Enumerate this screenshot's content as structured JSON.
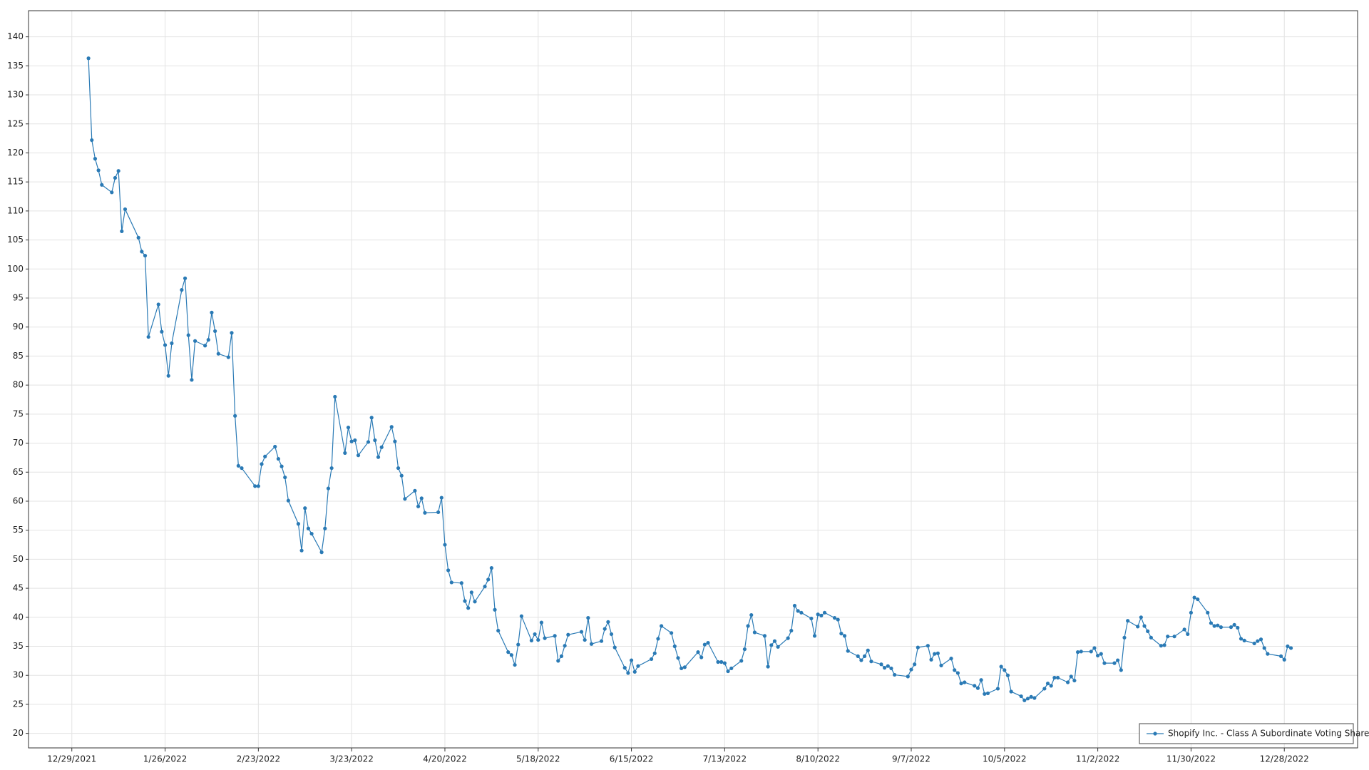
{
  "chart_data": {
    "type": "line",
    "x": [
      "1/3/2022",
      "1/4/2022",
      "1/5/2022",
      "1/6/2022",
      "1/7/2022",
      "1/10/2022",
      "1/11/2022",
      "1/12/2022",
      "1/13/2022",
      "1/14/2022",
      "1/18/2022",
      "1/19/2022",
      "1/20/2022",
      "1/21/2022",
      "1/24/2022",
      "1/25/2022",
      "1/26/2022",
      "1/27/2022",
      "1/28/2022",
      "1/31/2022",
      "2/1/2022",
      "2/2/2022",
      "2/3/2022",
      "2/4/2022",
      "2/7/2022",
      "2/8/2022",
      "2/9/2022",
      "2/10/2022",
      "2/11/2022",
      "2/14/2022",
      "2/15/2022",
      "2/16/2022",
      "2/17/2022",
      "2/18/2022",
      "2/22/2022",
      "2/23/2022",
      "2/24/2022",
      "2/25/2022",
      "2/28/2022",
      "3/1/2022",
      "3/2/2022",
      "3/3/2022",
      "3/4/2022",
      "3/7/2022",
      "3/8/2022",
      "3/9/2022",
      "3/10/2022",
      "3/11/2022",
      "3/14/2022",
      "3/15/2022",
      "3/16/2022",
      "3/17/2022",
      "3/18/2022",
      "3/21/2022",
      "3/22/2022",
      "3/23/2022",
      "3/24/2022",
      "3/25/2022",
      "3/28/2022",
      "3/29/2022",
      "3/30/2022",
      "3/31/2022",
      "4/1/2022",
      "4/4/2022",
      "4/5/2022",
      "4/6/2022",
      "4/7/2022",
      "4/8/2022",
      "4/11/2022",
      "4/12/2022",
      "4/13/2022",
      "4/14/2022",
      "4/18/2022",
      "4/19/2022",
      "4/20/2022",
      "4/21/2022",
      "4/22/2022",
      "4/25/2022",
      "4/26/2022",
      "4/27/2022",
      "4/28/2022",
      "4/29/2022",
      "5/2/2022",
      "5/3/2022",
      "5/4/2022",
      "5/5/2022",
      "5/6/2022",
      "5/9/2022",
      "5/10/2022",
      "5/11/2022",
      "5/12/2022",
      "5/13/2022",
      "5/16/2022",
      "5/17/2022",
      "5/18/2022",
      "5/19/2022",
      "5/20/2022",
      "5/23/2022",
      "5/24/2022",
      "5/25/2022",
      "5/26/2022",
      "5/27/2022",
      "5/31/2022",
      "6/1/2022",
      "6/2/2022",
      "6/3/2022",
      "6/6/2022",
      "6/7/2022",
      "6/8/2022",
      "6/9/2022",
      "6/10/2022",
      "6/13/2022",
      "6/14/2022",
      "6/15/2022",
      "6/16/2022",
      "6/17/2022",
      "6/21/2022",
      "6/22/2022",
      "6/23/2022",
      "6/24/2022",
      "6/27/2022",
      "6/28/2022",
      "6/29/2022",
      "6/30/2022",
      "7/1/2022",
      "7/5/2022",
      "7/6/2022",
      "7/7/2022",
      "7/8/2022",
      "7/11/2022",
      "7/12/2022",
      "7/13/2022",
      "7/14/2022",
      "7/15/2022",
      "7/18/2022",
      "7/19/2022",
      "7/20/2022",
      "7/21/2022",
      "7/22/2022",
      "7/25/2022",
      "7/26/2022",
      "7/27/2022",
      "7/28/2022",
      "7/29/2022",
      "8/1/2022",
      "8/2/2022",
      "8/3/2022",
      "8/4/2022",
      "8/5/2022",
      "8/8/2022",
      "8/9/2022",
      "8/10/2022",
      "8/11/2022",
      "8/12/2022",
      "8/15/2022",
      "8/16/2022",
      "8/17/2022",
      "8/18/2022",
      "8/19/2022",
      "8/22/2022",
      "8/23/2022",
      "8/24/2022",
      "8/25/2022",
      "8/26/2022",
      "8/29/2022",
      "8/30/2022",
      "8/31/2022",
      "9/1/2022",
      "9/2/2022",
      "9/6/2022",
      "9/7/2022",
      "9/8/2022",
      "9/9/2022",
      "9/12/2022",
      "9/13/2022",
      "9/14/2022",
      "9/15/2022",
      "9/16/2022",
      "9/19/2022",
      "9/20/2022",
      "9/21/2022",
      "9/22/2022",
      "9/23/2022",
      "9/26/2022",
      "9/27/2022",
      "9/28/2022",
      "9/29/2022",
      "9/30/2022",
      "10/3/2022",
      "10/4/2022",
      "10/5/2022",
      "10/6/2022",
      "10/7/2022",
      "10/10/2022",
      "10/11/2022",
      "10/12/2022",
      "10/13/2022",
      "10/14/2022",
      "10/17/2022",
      "10/18/2022",
      "10/19/2022",
      "10/20/2022",
      "10/21/2022",
      "10/24/2022",
      "10/25/2022",
      "10/26/2022",
      "10/27/2022",
      "10/28/2022",
      "10/31/2022",
      "11/1/2022",
      "11/2/2022",
      "11/3/2022",
      "11/4/2022",
      "11/7/2022",
      "11/8/2022",
      "11/9/2022",
      "11/10/2022",
      "11/11/2022",
      "11/14/2022",
      "11/15/2022",
      "11/16/2022",
      "11/17/2022",
      "11/18/2022",
      "11/21/2022",
      "11/22/2022",
      "11/23/2022",
      "11/25/2022",
      "11/28/2022",
      "11/29/2022",
      "11/30/2022",
      "12/1/2022",
      "12/2/2022",
      "12/5/2022",
      "12/6/2022",
      "12/7/2022",
      "12/8/2022",
      "12/9/2022",
      "12/12/2022",
      "12/13/2022",
      "12/14/2022",
      "12/15/2022",
      "12/16/2022",
      "12/19/2022",
      "12/20/2022",
      "12/21/2022",
      "12/22/2022",
      "12/23/2022",
      "12/27/2022",
      "12/28/2022",
      "12/29/2022",
      "12/30/2022"
    ],
    "series": [
      {
        "name": "Shopify Inc. - Class A Subordinate Voting Shares",
        "color": "#2a7ab5",
        "values": [
          136.3,
          122.2,
          119,
          117,
          114.5,
          113.2,
          115.7,
          116.9,
          106.5,
          110.3,
          105.4,
          103,
          102.3,
          88.3,
          93.9,
          89.2,
          86.9,
          81.6,
          87.2,
          96.4,
          98.4,
          88.6,
          80.9,
          87.6,
          86.8,
          87.8,
          92.5,
          89.3,
          85.4,
          84.8,
          89,
          74.7,
          66.1,
          65.7,
          62.6,
          62.6,
          66.4,
          67.7,
          69.4,
          67.3,
          66,
          64.1,
          60.1,
          56.1,
          51.5,
          58.8,
          55.3,
          54.4,
          51.2,
          55.3,
          62.2,
          65.7,
          78,
          68.3,
          72.7,
          70.3,
          70.5,
          67.9,
          70.2,
          74.4,
          70.5,
          67.6,
          69.3,
          72.8,
          70.3,
          65.7,
          64.4,
          60.4,
          61.8,
          59.1,
          60.5,
          58,
          58.1,
          60.6,
          52.5,
          48.1,
          46,
          45.9,
          42.8,
          41.6,
          44.3,
          42.7,
          45.3,
          46.5,
          48.5,
          41.3,
          37.7,
          34,
          33.5,
          31.8,
          35.3,
          40.2,
          36,
          37.1,
          36.1,
          39.1,
          36.4,
          36.8,
          32.5,
          33.3,
          35.1,
          37,
          37.5,
          36.1,
          39.9,
          35.4,
          35.9,
          38,
          39.2,
          37.1,
          34.8,
          31.3,
          30.4,
          32.6,
          30.6,
          31.6,
          32.8,
          33.8,
          36.3,
          38.5,
          37.3,
          35,
          33,
          31.2,
          31.4,
          34,
          33.1,
          35.3,
          35.6,
          32.3,
          32.3,
          32.1,
          30.7,
          31.2,
          32.5,
          34.5,
          38.5,
          40.4,
          37.4,
          36.8,
          31.5,
          35.2,
          35.9,
          34.9,
          36.4,
          37.7,
          42,
          41.1,
          40.8,
          39.8,
          36.8,
          40.5,
          40.3,
          40.8,
          39.9,
          39.6,
          37.2,
          36.8,
          34.2,
          33.3,
          32.6,
          33.3,
          34.3,
          32.4,
          31.9,
          31.3,
          31.6,
          31.2,
          30.1,
          29.8,
          31,
          31.9,
          34.8,
          35.1,
          32.7,
          33.7,
          33.8,
          31.7,
          32.9,
          30.9,
          30.4,
          28.6,
          28.8,
          28.2,
          27.8,
          29.2,
          26.8,
          26.9,
          27.7,
          31.5,
          30.9,
          30,
          27.2,
          26.4,
          25.7,
          26,
          26.3,
          26.1,
          27.7,
          28.6,
          28.2,
          29.6,
          29.6,
          28.8,
          29.8,
          29.1,
          34,
          34.1,
          34.1,
          34.7,
          33.4,
          33.7,
          32.1,
          32.1,
          32.6,
          30.9,
          36.5,
          39.4,
          38.4,
          40,
          38.5,
          37.6,
          36.5,
          35.1,
          35.2,
          36.7,
          36.7,
          37.9,
          37.1,
          40.8,
          43.4,
          43.1,
          40.8,
          39,
          38.5,
          38.6,
          38.3,
          38.3,
          38.7,
          38.2,
          36.3,
          36,
          35.5,
          35.9,
          36.2,
          34.7,
          33.7,
          33.3,
          32.7,
          35,
          34.7
        ]
      }
    ],
    "xlim": [
      "12/16/2021",
      "1/19/2023"
    ],
    "xticks": [
      "12/29/2021",
      "1/26/2022",
      "2/23/2022",
      "3/23/2022",
      "4/20/2022",
      "5/18/2022",
      "6/15/2022",
      "7/13/2022",
      "8/10/2022",
      "9/7/2022",
      "10/5/2022",
      "11/2/2022",
      "11/30/2022",
      "12/28/2022"
    ],
    "ylim": [
      17.5,
      144.5
    ],
    "yticks": [
      20,
      25,
      30,
      35,
      40,
      45,
      50,
      55,
      60,
      65,
      70,
      75,
      80,
      85,
      90,
      95,
      100,
      105,
      110,
      115,
      120,
      125,
      130,
      135,
      140
    ],
    "grid": true,
    "legend": "lower right"
  }
}
